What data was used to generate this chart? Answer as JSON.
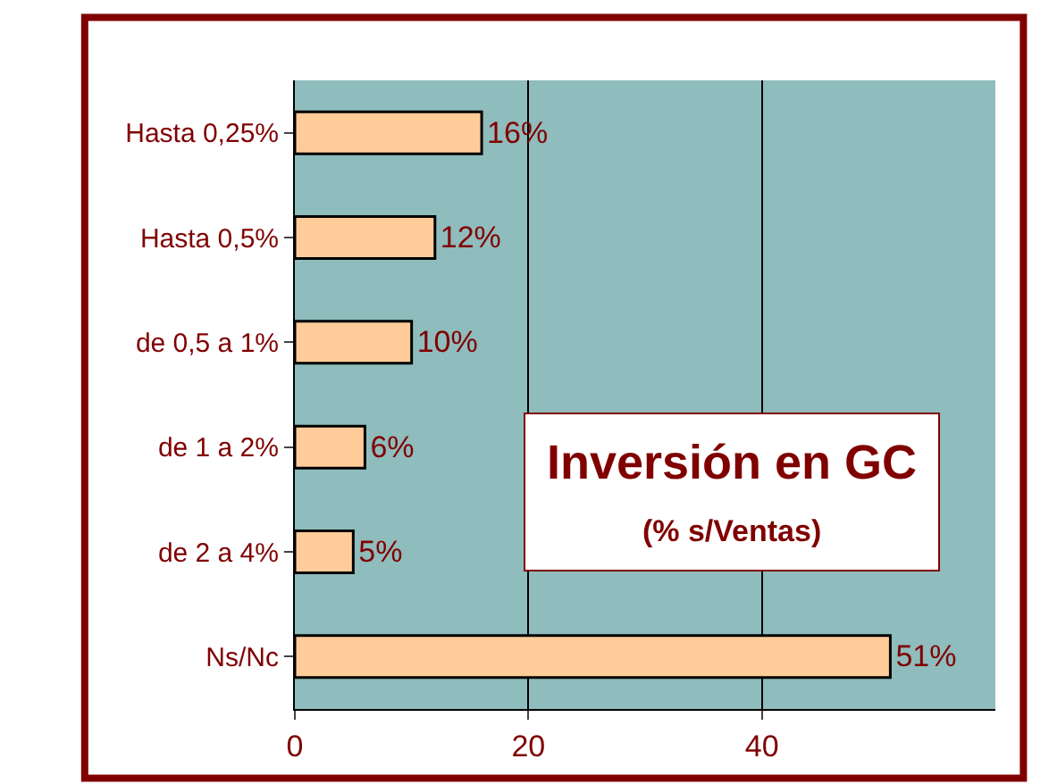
{
  "chart_data": {
    "type": "bar",
    "orientation": "horizontal",
    "title": "Inversión en GC",
    "subtitle": "(% s/Ventas)",
    "categories": [
      "Hasta 0,25%",
      "Hasta 0,5%",
      "de 0,5 a 1%",
      "de 1 a 2%",
      "de 2 a 4%",
      "Ns/Nc"
    ],
    "values": [
      16,
      12,
      10,
      6,
      5,
      51
    ],
    "value_labels": [
      "16%",
      "12%",
      "10%",
      "6%",
      "5%",
      "51%"
    ],
    "color": "#ffcc99",
    "xlim": [
      0,
      60
    ],
    "xticks": [
      0,
      20,
      40
    ],
    "grid": "x",
    "legend": false
  }
}
